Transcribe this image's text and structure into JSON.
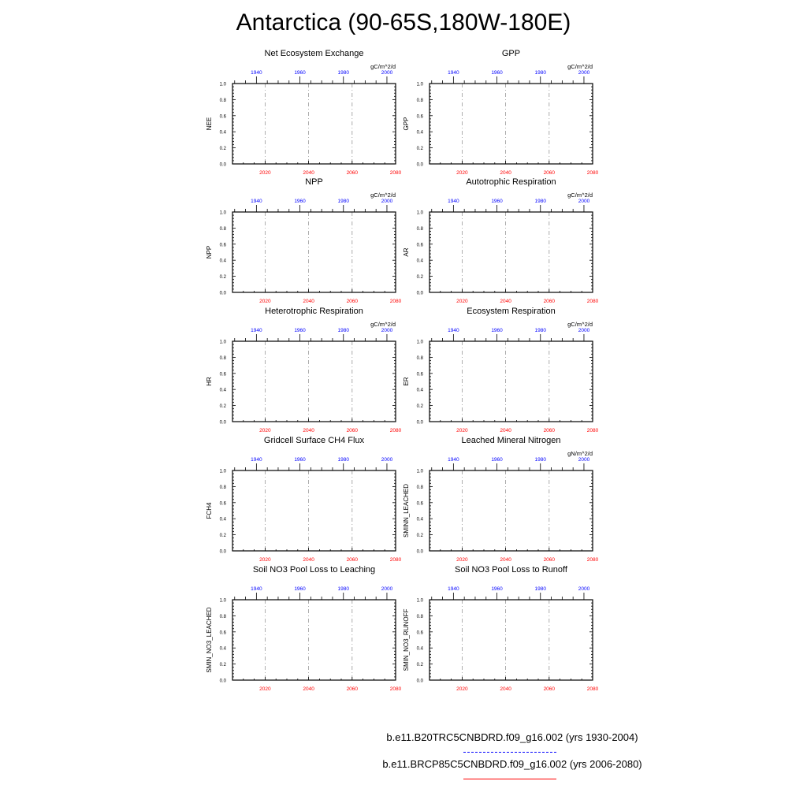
{
  "page": {
    "title": "Antarctica (90-65S,180W-180E)"
  },
  "colors": {
    "historical_axis": "#0000ff",
    "future_axis": "#ff0000",
    "frame": "#000000",
    "gridline": "#999999"
  },
  "chart_data": [
    {
      "type": "line",
      "title": "Net Ecosystem Exchange",
      "ylabel": "NEE",
      "units": "gC/m^2/d",
      "ylim": [
        0,
        1
      ],
      "yticks": [
        "0.0",
        "0.2",
        "0.4",
        "0.6",
        "0.8",
        "1.0"
      ],
      "x_top_ticks": [
        "1940",
        "1960",
        "1980",
        "2000"
      ],
      "x_bottom_ticks": [
        "2020",
        "2040",
        "2060",
        "2080"
      ],
      "series": []
    },
    {
      "type": "line",
      "title": "GPP",
      "ylabel": "GPP",
      "units": "gC/m^2/d",
      "ylim": [
        0,
        1
      ],
      "yticks": [
        "0.0",
        "0.2",
        "0.4",
        "0.6",
        "0.8",
        "1.0"
      ],
      "x_top_ticks": [
        "1940",
        "1960",
        "1980",
        "2000"
      ],
      "x_bottom_ticks": [
        "2020",
        "2040",
        "2060",
        "2080"
      ],
      "series": []
    },
    {
      "type": "line",
      "title": "NPP",
      "ylabel": "NPP",
      "units": "gC/m^2/d",
      "ylim": [
        0,
        1
      ],
      "yticks": [
        "0.0",
        "0.2",
        "0.4",
        "0.6",
        "0.8",
        "1.0"
      ],
      "x_top_ticks": [
        "1940",
        "1960",
        "1980",
        "2000"
      ],
      "x_bottom_ticks": [
        "2020",
        "2040",
        "2060",
        "2080"
      ],
      "series": []
    },
    {
      "type": "line",
      "title": "Autotrophic Respiration",
      "ylabel": "AR",
      "units": "gC/m^2/d",
      "ylim": [
        0,
        1
      ],
      "yticks": [
        "0.0",
        "0.2",
        "0.4",
        "0.6",
        "0.8",
        "1.0"
      ],
      "x_top_ticks": [
        "1940",
        "1960",
        "1980",
        "2000"
      ],
      "x_bottom_ticks": [
        "2020",
        "2040",
        "2060",
        "2080"
      ],
      "series": []
    },
    {
      "type": "line",
      "title": "Heterotrophic Respiration",
      "ylabel": "HR",
      "units": "gC/m^2/d",
      "ylim": [
        0,
        1
      ],
      "yticks": [
        "0.0",
        "0.2",
        "0.4",
        "0.6",
        "0.8",
        "1.0"
      ],
      "x_top_ticks": [
        "1940",
        "1960",
        "1980",
        "2000"
      ],
      "x_bottom_ticks": [
        "2020",
        "2040",
        "2060",
        "2080"
      ],
      "series": []
    },
    {
      "type": "line",
      "title": "Ecosystem Respiration",
      "ylabel": "ER",
      "units": "gC/m^2/d",
      "ylim": [
        0,
        1
      ],
      "yticks": [
        "0.0",
        "0.2",
        "0.4",
        "0.6",
        "0.8",
        "1.0"
      ],
      "x_top_ticks": [
        "1940",
        "1960",
        "1980",
        "2000"
      ],
      "x_bottom_ticks": [
        "2020",
        "2040",
        "2060",
        "2080"
      ],
      "series": []
    },
    {
      "type": "line",
      "title": "Gridcell Surface CH4 Flux",
      "ylabel": "FCH4",
      "units": "",
      "ylim": [
        0,
        1
      ],
      "yticks": [
        "0.0",
        "0.2",
        "0.4",
        "0.6",
        "0.8",
        "1.0"
      ],
      "x_top_ticks": [
        "1940",
        "1960",
        "1980",
        "2000"
      ],
      "x_bottom_ticks": [
        "2020",
        "2040",
        "2060",
        "2080"
      ],
      "series": []
    },
    {
      "type": "line",
      "title": "Leached Mineral Nitrogen",
      "ylabel": "SMINN_LEACHED",
      "units": "gN/m^2/d",
      "ylim": [
        0,
        1
      ],
      "yticks": [
        "0.0",
        "0.2",
        "0.4",
        "0.6",
        "0.8",
        "1.0"
      ],
      "x_top_ticks": [
        "1940",
        "1960",
        "1980",
        "2000"
      ],
      "x_bottom_ticks": [
        "2020",
        "2040",
        "2060",
        "2080"
      ],
      "series": []
    },
    {
      "type": "line",
      "title": "Soil NO3 Pool Loss to Leaching",
      "ylabel": "SMIN_NO3_LEACHED",
      "units": "",
      "ylim": [
        0,
        1
      ],
      "yticks": [
        "0.0",
        "0.2",
        "0.4",
        "0.6",
        "0.8",
        "1.0"
      ],
      "x_top_ticks": [
        "1940",
        "1960",
        "1980",
        "2000"
      ],
      "x_bottom_ticks": [
        "2020",
        "2040",
        "2060",
        "2080"
      ],
      "series": []
    },
    {
      "type": "line",
      "title": "Soil NO3 Pool Loss to Runoff",
      "ylabel": "SMIN_NO3_RUNOFF",
      "units": "",
      "ylim": [
        0,
        1
      ],
      "yticks": [
        "0.0",
        "0.2",
        "0.4",
        "0.6",
        "0.8",
        "1.0"
      ],
      "x_top_ticks": [
        "1940",
        "1960",
        "1980",
        "2000"
      ],
      "x_bottom_ticks": [
        "2020",
        "2040",
        "2060",
        "2080"
      ],
      "series": []
    }
  ],
  "legend": {
    "items": [
      {
        "label": "b.e11.B20TRC5CNBDRD.f09_g16.002 (yrs 1930-2004)",
        "color": "#0000ff",
        "style": "dashed"
      },
      {
        "label": "b.e11.BRCP85C5CNBDRD.f09_g16.002 (yrs 2006-2080)",
        "color": "#ff0000",
        "style": "solid"
      }
    ]
  }
}
